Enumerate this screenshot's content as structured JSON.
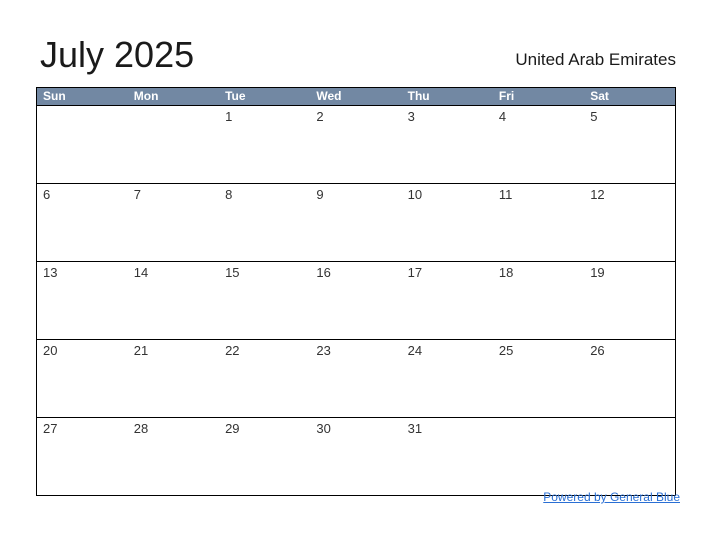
{
  "page": {
    "title": "July 2025",
    "country": "United Arab Emirates"
  },
  "calendar": {
    "day_headers": [
      "Sun",
      "Mon",
      "Tue",
      "Wed",
      "Thu",
      "Fri",
      "Sat"
    ],
    "weeks": [
      [
        "",
        "",
        "1",
        "2",
        "3",
        "4",
        "5"
      ],
      [
        "6",
        "7",
        "8",
        "9",
        "10",
        "11",
        "12"
      ],
      [
        "13",
        "14",
        "15",
        "16",
        "17",
        "18",
        "19"
      ],
      [
        "20",
        "21",
        "22",
        "23",
        "24",
        "25",
        "26"
      ],
      [
        "27",
        "28",
        "29",
        "30",
        "31",
        "",
        ""
      ]
    ]
  },
  "footer": {
    "link_label": "Powered by General Blue"
  },
  "colors": {
    "header_bg": "#7288a3",
    "header_text": "#ffffff",
    "grid_border": "#000000",
    "day_number": "#333333",
    "title_color": "#1a1a1a",
    "link": "#2a6fd4",
    "page_bg": "#ffffff"
  }
}
